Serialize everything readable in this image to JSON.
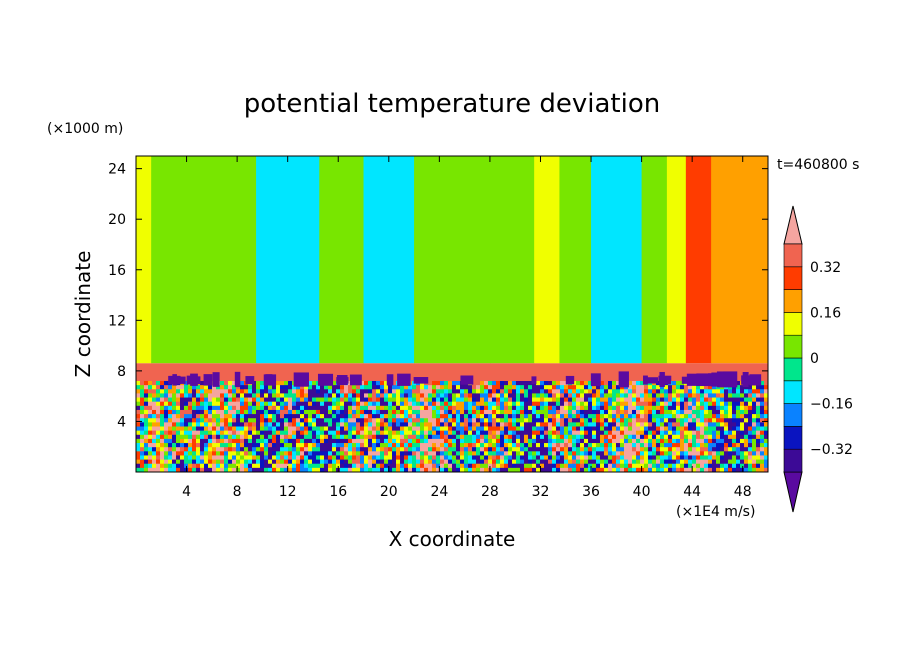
{
  "chart_data": {
    "type": "heatmap",
    "title": "potential temperature deviation",
    "xlabel": "X coordinate",
    "ylabel": "Z coordinate",
    "x_unit": "(×1E4 m/s)",
    "y_unit": "(×1000 m)",
    "time_label": "t=460800 s",
    "xlim": [
      0,
      50
    ],
    "ylim": [
      0,
      25
    ],
    "x_ticks": [
      4,
      8,
      12,
      16,
      20,
      24,
      28,
      32,
      36,
      40,
      44,
      48
    ],
    "y_ticks": [
      4,
      8,
      12,
      16,
      20,
      24
    ],
    "colorbar": {
      "levels": [
        -0.4,
        -0.32,
        -0.24,
        -0.16,
        -0.08,
        0,
        0.08,
        0.16,
        0.24,
        0.32,
        0.4
      ],
      "labels": [
        {
          "value": 0.32,
          "text": "0.32"
        },
        {
          "value": 0.16,
          "text": "0.16"
        },
        {
          "value": 0,
          "text": "0"
        },
        {
          "value": -0.16,
          "text": "−0.16"
        },
        {
          "value": -0.32,
          "text": "−0.32"
        }
      ],
      "colors": [
        "#5a0aa0",
        "#3c0a96",
        "#0a14c0",
        "#0a82ff",
        "#00e6ff",
        "#00e68c",
        "#78e600",
        "#f0ff00",
        "#ffa000",
        "#ff3c00",
        "#f06450",
        "#f5a5a0"
      ],
      "extend": "both"
    },
    "bands": {
      "upper": [
        {
          "x": [
            0,
            1.2
          ],
          "value": 0.13
        },
        {
          "x": [
            1.2,
            9.5
          ],
          "value": 0.02
        },
        {
          "x": [
            9.5,
            14.5
          ],
          "value": -0.1
        },
        {
          "x": [
            14.5,
            18
          ],
          "value": 0.02
        },
        {
          "x": [
            18,
            22
          ],
          "value": -0.1
        },
        {
          "x": [
            22,
            28
          ],
          "value": 0.02
        },
        {
          "x": [
            28,
            31.5
          ],
          "value": 0.06
        },
        {
          "x": [
            31.5,
            33.5
          ],
          "value": 0.12
        },
        {
          "x": [
            33.5,
            36
          ],
          "value": 0.05
        },
        {
          "x": [
            36,
            40
          ],
          "value": -0.1
        },
        {
          "x": [
            40,
            42
          ],
          "value": 0.06
        },
        {
          "x": [
            42,
            43.5
          ],
          "value": 0.13
        },
        {
          "x": [
            43.5,
            45.5
          ],
          "value": 0.28
        },
        {
          "x": [
            45.5,
            50
          ],
          "value": 0.2
        }
      ],
      "inversion_layer": {
        "z": [
          7.2,
          8.6
        ],
        "value": 0.38
      },
      "mixed_layer": {
        "z": [
          0,
          7.2
        ],
        "min": -0.4,
        "max": 0.4
      }
    }
  }
}
